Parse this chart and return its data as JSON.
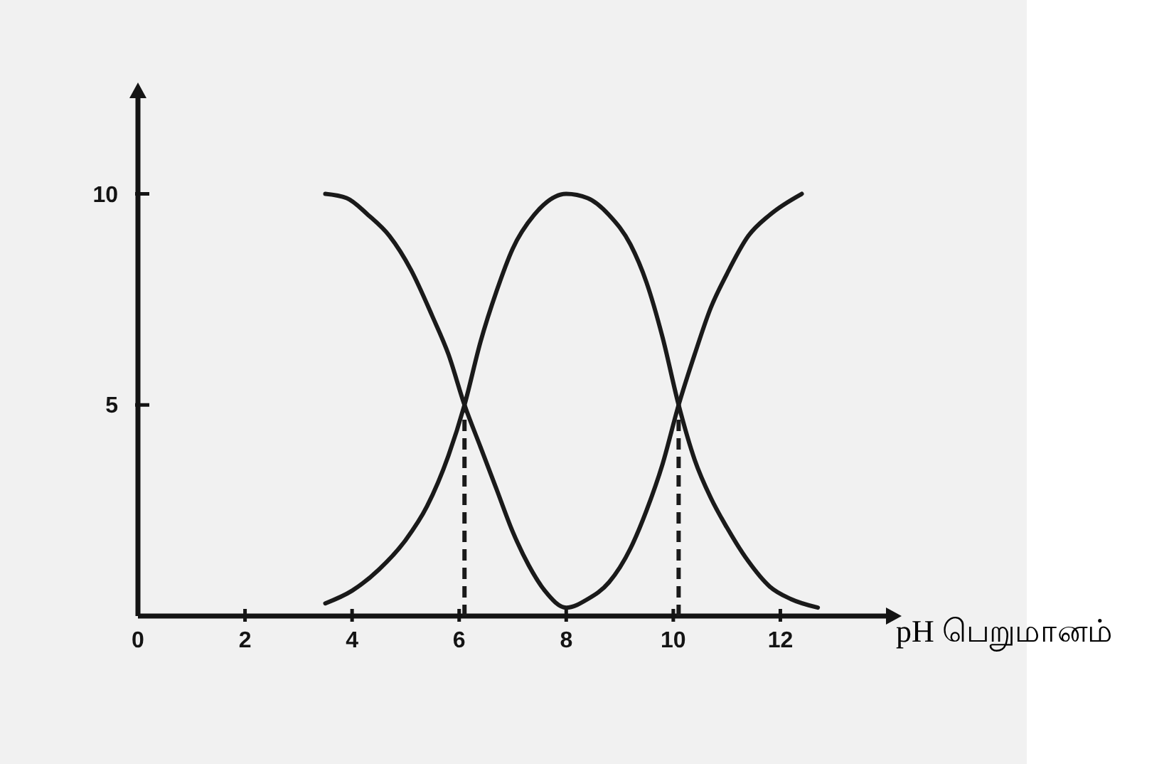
{
  "chart_data": {
    "type": "line",
    "xlabel": "pH பெறுமானம்",
    "xlim": [
      0,
      14
    ],
    "ylim": [
      0,
      12.3
    ],
    "xticks": [
      0,
      2,
      4,
      6,
      8,
      10,
      12
    ],
    "yticks": [
      5,
      10
    ],
    "grid": false,
    "marker": "none",
    "line_style": "solid",
    "series": [
      {
        "color": "#1a1a1a",
        "x": [
          3.5,
          3.9,
          4.3,
          4.7,
          5.1,
          5.5,
          5.8,
          6.1,
          6.4,
          6.7,
          7.0,
          7.3,
          7.6,
          8.0,
          8.4,
          8.8,
          9.2,
          9.5,
          9.8,
          10.1,
          10.4,
          10.7,
          11.0,
          11.4,
          11.8,
          12.4
        ],
        "values": [
          10,
          9.9,
          9.5,
          9.0,
          8.2,
          7.1,
          6.2,
          5.0,
          4.0,
          3.0,
          2.0,
          1.2,
          0.6,
          0.2,
          0.4,
          0.8,
          1.6,
          2.5,
          3.6,
          5.0,
          6.2,
          7.3,
          8.1,
          9.0,
          9.5,
          10
        ]
      },
      {
        "color": "#1a1a1a",
        "x": [
          3.5,
          4.0,
          4.5,
          5.0,
          5.4,
          5.8,
          6.1,
          6.4,
          6.7,
          7.0,
          7.4,
          8.0,
          8.4,
          8.8,
          9.2,
          9.5,
          9.8,
          10.1,
          10.4,
          10.7,
          11.0,
          11.4,
          11.8,
          12.2,
          12.7
        ],
        "values": [
          0.3,
          0.6,
          1.1,
          1.8,
          2.6,
          3.8,
          5.0,
          6.5,
          7.7,
          8.7,
          9.5,
          10,
          9.9,
          9.5,
          8.8,
          7.9,
          6.6,
          5.0,
          3.7,
          2.8,
          2.1,
          1.3,
          0.7,
          0.4,
          0.2
        ]
      },
      {
        "color": "#1a1a1a",
        "x": [
          6.1,
          6.1
        ],
        "values": [
          0,
          5
        ],
        "line_style": "dashed"
      },
      {
        "color": "#1a1a1a",
        "x": [
          10.1,
          10.1
        ],
        "values": [
          0,
          5
        ],
        "line_style": "dashed"
      }
    ]
  }
}
